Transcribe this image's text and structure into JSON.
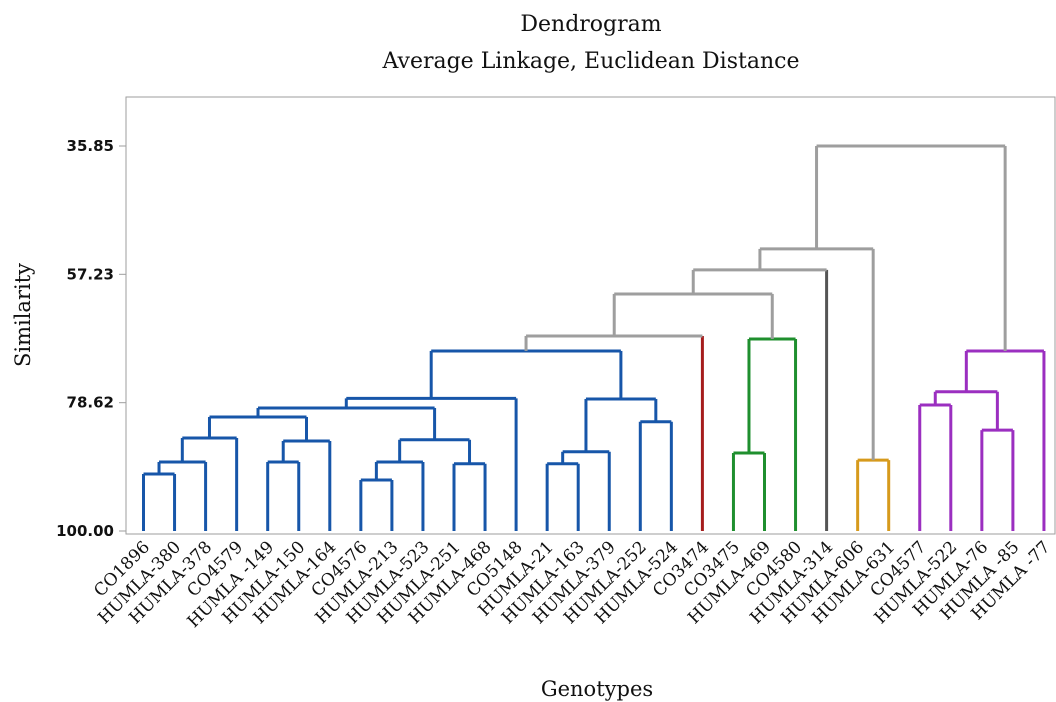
{
  "chart_data": {
    "type": "dendrogram",
    "title": "Dendrogram",
    "subtitle": "Average Linkage, Euclidean Distance",
    "xlabel": "Genotypes",
    "ylabel": "Similarity",
    "ylim": [
      100.0,
      35.85
    ],
    "yticks": [
      "35.85",
      "57.23",
      "78.62",
      "100.00"
    ],
    "ytick_values": [
      35.85,
      57.23,
      78.62,
      100.0
    ],
    "leaves": [
      "CO1896",
      "HUMLA-380",
      "HUMLA-378",
      "CO4579",
      "HUMLA -149",
      "HUMLA-150",
      "HUMLA-164",
      "CO4576",
      "HUMLA-213",
      "HUMLA-523",
      "HUMLA-251",
      "HUMLA-468",
      "CO5148",
      "HUMLA-21",
      "HUMLA-163",
      "HUMLA-379",
      "HUMLA-252",
      "HUMLA-524",
      "CO3474",
      "CO3475",
      "HUMLA-469",
      "CO4580",
      "HUMLA-314",
      "HUMLA-606",
      "HUMLA-631",
      "CO4577",
      "HUMLA-522",
      "HUMLA-76",
      "HUMLA -85",
      "HUMLA -77"
    ],
    "colors": {
      "blue": "#1756a9",
      "red": "#a51c1c",
      "green": "#1f8f2e",
      "dark": "#555555",
      "orange": "#d69a1c",
      "purple": "#9b2fc0",
      "gray": "#9e9e9e"
    },
    "merges": [
      {
        "id": "A",
        "left": 0,
        "right": 1,
        "similarity": 90.5,
        "color": "blue"
      },
      {
        "id": "B",
        "left": "A",
        "right": 2,
        "similarity": 88.5,
        "color": "blue"
      },
      {
        "id": "C",
        "left": "B",
        "right": 3,
        "similarity": 84.5,
        "color": "blue"
      },
      {
        "id": "D",
        "left": 4,
        "right": 5,
        "similarity": 88.5,
        "color": "blue"
      },
      {
        "id": "E",
        "left": "D",
        "right": 6,
        "similarity": 85.0,
        "color": "blue"
      },
      {
        "id": "F",
        "left": "C",
        "right": "E",
        "similarity": 81.0,
        "color": "blue"
      },
      {
        "id": "G",
        "left": 7,
        "right": 8,
        "similarity": 91.5,
        "color": "blue"
      },
      {
        "id": "H",
        "left": "G",
        "right": 9,
        "similarity": 88.5,
        "color": "blue"
      },
      {
        "id": "I",
        "left": 10,
        "right": 11,
        "similarity": 88.8,
        "color": "blue"
      },
      {
        "id": "J",
        "left": "H",
        "right": "I",
        "similarity": 84.8,
        "color": "blue"
      },
      {
        "id": "K",
        "left": "F",
        "right": "J",
        "similarity": 79.5,
        "color": "blue"
      },
      {
        "id": "L",
        "left": "K",
        "right": 12,
        "similarity": 77.9,
        "color": "blue"
      },
      {
        "id": "M",
        "left": 13,
        "right": 14,
        "similarity": 88.8,
        "color": "blue"
      },
      {
        "id": "N",
        "left": "M",
        "right": 15,
        "similarity": 86.8,
        "color": "blue"
      },
      {
        "id": "O",
        "left": 16,
        "right": 17,
        "similarity": 81.8,
        "color": "blue"
      },
      {
        "id": "P",
        "left": "N",
        "right": "O",
        "similarity": 78.0,
        "color": "blue"
      },
      {
        "id": "Q",
        "left": "L",
        "right": "P",
        "similarity": 70.0,
        "color": "blue"
      },
      {
        "id": "R",
        "left": "Q",
        "right": 18,
        "similarity": 67.5,
        "color": "gray",
        "right_color": "red"
      },
      {
        "id": "S",
        "left": 19,
        "right": 20,
        "similarity": 87.0,
        "color": "green"
      },
      {
        "id": "T",
        "left": "S",
        "right": 21,
        "similarity": 68.0,
        "color": "green"
      },
      {
        "id": "U",
        "left": "R",
        "right": "T",
        "similarity": 60.5,
        "color": "gray"
      },
      {
        "id": "V",
        "left": "U",
        "right": 22,
        "similarity": 56.5,
        "color": "gray",
        "right_color": "dark"
      },
      {
        "id": "W",
        "left": 23,
        "right": 24,
        "similarity": 88.2,
        "color": "orange"
      },
      {
        "id": "X",
        "left": "V",
        "right": "W",
        "similarity": 53.0,
        "color": "gray"
      },
      {
        "id": "Y",
        "left": 25,
        "right": 26,
        "similarity": 79.0,
        "color": "purple"
      },
      {
        "id": "Z",
        "left": 27,
        "right": 28,
        "similarity": 83.2,
        "color": "purple"
      },
      {
        "id": "AA",
        "left": "Y",
        "right": "Z",
        "similarity": 76.8,
        "color": "purple"
      },
      {
        "id": "AB",
        "left": "AA",
        "right": 29,
        "similarity": 70.0,
        "color": "purple"
      },
      {
        "id": "AC",
        "left": "X",
        "right": "AB",
        "similarity": 35.85,
        "color": "gray"
      }
    ]
  }
}
